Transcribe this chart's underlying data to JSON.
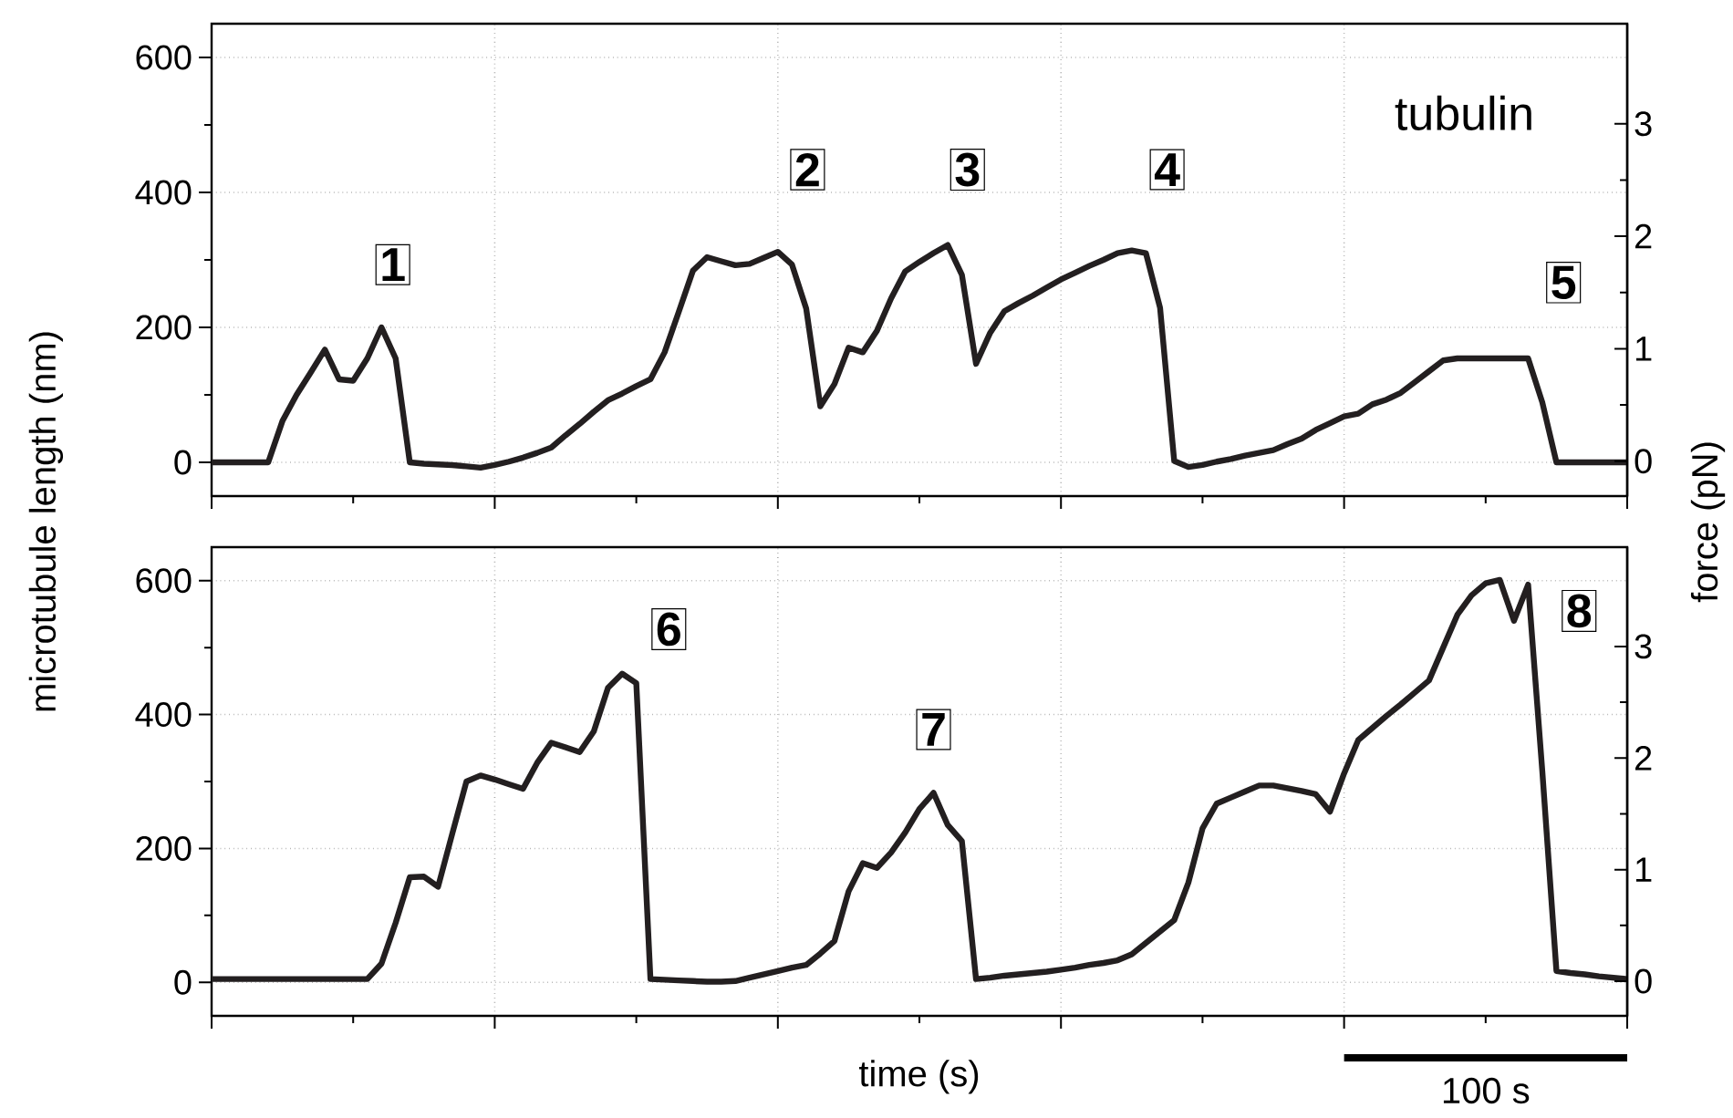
{
  "chart_data": [
    {
      "type": "line",
      "color": "#231f20",
      "grid": true,
      "tick_labels": "y",
      "ylabel": "microtubule length (nm)",
      "y2label": "force (pN)",
      "ylim": [
        -50,
        650
      ],
      "yticks": [
        0,
        200,
        400,
        600
      ],
      "y2lim": [
        -0.31,
        3.89
      ],
      "y2ticks": [
        0,
        1,
        2,
        3
      ],
      "categories": [
        null,
        null,
        null,
        null,
        null,
        null,
        null,
        null,
        null,
        null,
        null,
        null,
        null,
        null,
        null,
        null,
        null,
        null,
        null,
        null,
        null,
        null,
        null,
        null,
        null,
        null,
        null,
        null,
        null,
        null,
        null,
        null,
        null,
        null,
        null,
        null,
        null,
        null,
        null,
        null,
        null,
        null,
        null,
        null,
        null,
        null,
        null,
        null,
        null,
        null,
        null,
        null,
        null,
        null,
        null,
        null,
        null,
        null,
        null,
        null,
        null,
        null,
        null,
        null,
        null,
        null,
        null,
        null,
        null,
        null,
        null,
        null,
        null,
        null,
        null,
        null,
        null,
        null,
        null,
        null,
        null,
        null,
        null,
        null,
        null,
        null,
        null,
        null,
        null,
        null,
        null,
        null,
        null,
        null,
        null,
        null,
        null,
        null,
        null,
        null,
        null
      ],
      "values": [
        0,
        0,
        0,
        0,
        0,
        61,
        100,
        133,
        167,
        123,
        121,
        154,
        200,
        154,
        0,
        -2,
        -3,
        -4,
        -6,
        -8,
        -4,
        1,
        7,
        14,
        22,
        40,
        57,
        75,
        92,
        102,
        113,
        123,
        163,
        223,
        284,
        304,
        298,
        292,
        294,
        303,
        312,
        293,
        228,
        83,
        116,
        170,
        163,
        195,
        243,
        283,
        297,
        310,
        322,
        278,
        146,
        192,
        224,
        236,
        247,
        259,
        271,
        281,
        291,
        300,
        310,
        314,
        310,
        229,
        2,
        -7,
        -4,
        1,
        5,
        10,
        14,
        18,
        27,
        35,
        48,
        58,
        68,
        72,
        86,
        93,
        103,
        119,
        135,
        151,
        154,
        154,
        154,
        154,
        154,
        154,
        89,
        0,
        0,
        0,
        0,
        0,
        0
      ],
      "annotations": [
        "1",
        "2",
        "3",
        "4",
        "5",
        "tubulin"
      ]
    },
    {
      "type": "line",
      "color": "#231f20",
      "grid": true,
      "tick_labels": "y",
      "xlabel": "time (s)",
      "ylim": [
        -50,
        650
      ],
      "yticks": [
        0,
        200,
        400,
        600
      ],
      "y2lim": [
        -0.31,
        3.89
      ],
      "y2ticks": [
        0,
        1,
        2,
        3
      ],
      "categories": [
        null,
        null,
        null,
        null,
        null,
        null,
        null,
        null,
        null,
        null,
        null,
        null,
        null,
        null,
        null,
        null,
        null,
        null,
        null,
        null,
        null,
        null,
        null,
        null,
        null,
        null,
        null,
        null,
        null,
        null,
        null,
        null,
        null,
        null,
        null,
        null,
        null,
        null,
        null,
        null,
        null,
        null,
        null,
        null,
        null,
        null,
        null,
        null,
        null,
        null,
        null,
        null,
        null,
        null,
        null,
        null,
        null,
        null,
        null,
        null,
        null,
        null,
        null,
        null,
        null,
        null,
        null,
        null,
        null,
        null,
        null,
        null,
        null,
        null,
        null,
        null,
        null,
        null,
        null,
        null,
        null,
        null,
        null,
        null,
        null,
        null,
        null,
        null,
        null,
        null,
        null,
        null,
        null,
        null,
        null,
        null,
        null,
        null,
        null,
        null,
        null
      ],
      "values": [
        5,
        5,
        5,
        5,
        5,
        5,
        5,
        5,
        5,
        5,
        5,
        5,
        28,
        89,
        157,
        158,
        143,
        222,
        300,
        309,
        303,
        296,
        289,
        328,
        358,
        351,
        344,
        375,
        440,
        461,
        447,
        5,
        4,
        3,
        2,
        1,
        1,
        2,
        7,
        12,
        17,
        22,
        26,
        43,
        62,
        136,
        178,
        171,
        194,
        224,
        259,
        283,
        235,
        211,
        5,
        7,
        10,
        12,
        14,
        16,
        19,
        22,
        26,
        29,
        33,
        42,
        59,
        76,
        93,
        149,
        230,
        267,
        276,
        285,
        294,
        294,
        290,
        286,
        281,
        255,
        312,
        362,
        380,
        398,
        415,
        433,
        451,
        500,
        549,
        578,
        596,
        601,
        540,
        594,
        316,
        17,
        14,
        12,
        9,
        7,
        5
      ],
      "annotations": [
        "6",
        "7",
        "8",
        "100 s"
      ]
    }
  ]
}
